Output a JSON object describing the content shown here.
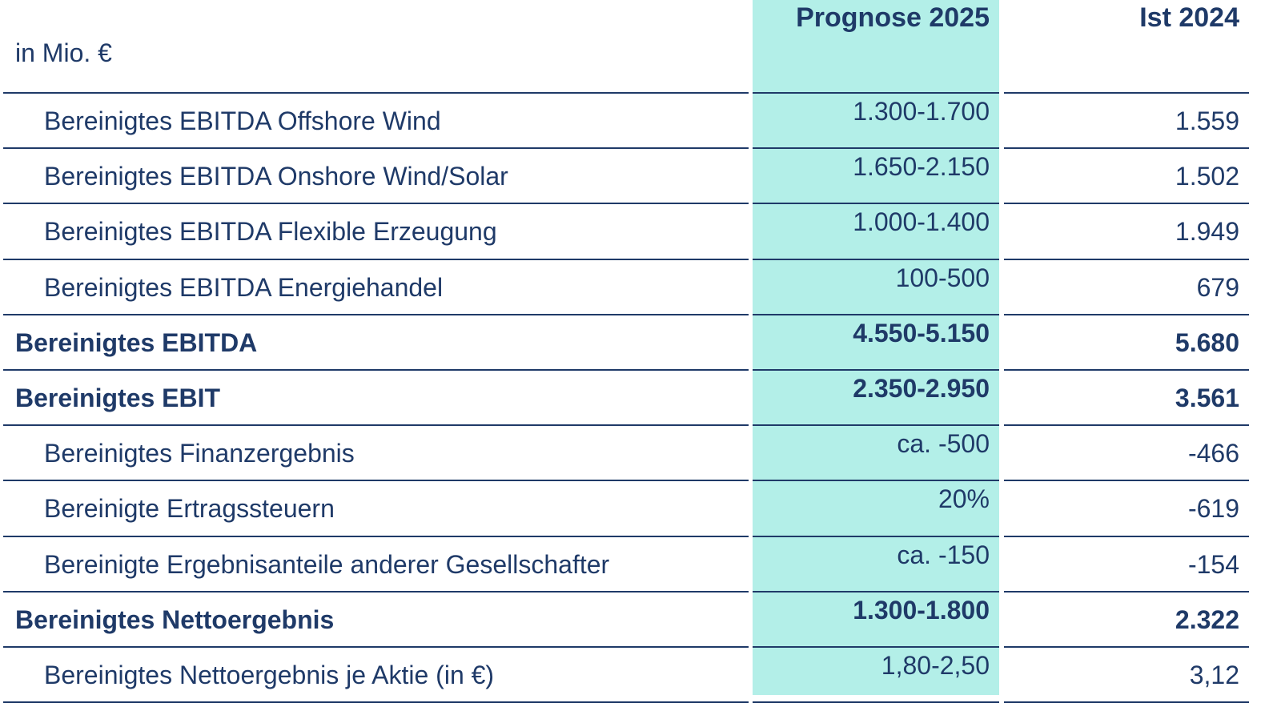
{
  "header": {
    "unit": "in Mio. €",
    "columns": [
      "Prognose 2025",
      "Ist 2024"
    ]
  },
  "table": {
    "rows": [
      {
        "label": "Bereinigtes EBITDA Offshore Wind",
        "forecast": "1.300-1.700",
        "actual": "1.559",
        "bold": false
      },
      {
        "label": "Bereinigtes EBITDA Onshore Wind/Solar",
        "forecast": "1.650-2.150",
        "actual": "1.502",
        "bold": false
      },
      {
        "label": "Bereinigtes EBITDA Flexible Erzeugung",
        "forecast": "1.000-1.400",
        "actual": "1.949",
        "bold": false
      },
      {
        "label": "Bereinigtes EBITDA Energiehandel",
        "forecast": "100-500",
        "actual": "679",
        "bold": false
      },
      {
        "label": "Bereinigtes EBITDA",
        "forecast": "4.550-5.150",
        "actual": "5.680",
        "bold": true
      },
      {
        "label": "Bereinigtes EBIT",
        "forecast": "2.350-2.950",
        "actual": "3.561",
        "bold": true
      },
      {
        "label": "Bereinigtes Finanzergebnis",
        "forecast": "ca. -500",
        "actual": "-466",
        "bold": false
      },
      {
        "label": "Bereinigte Ertragssteuern",
        "forecast": "20%",
        "actual": "-619",
        "bold": false
      },
      {
        "label": "Bereinigte Ergebnisanteile anderer Gesellschafter",
        "forecast": "ca. -150",
        "actual": "-154",
        "bold": false
      },
      {
        "label": "Bereinigtes Nettoergebnis",
        "forecast": "1.300-1.800",
        "actual": "2.322",
        "bold": true
      },
      {
        "label": "Bereinigtes Nettoergebnis je Aktie (in €)",
        "forecast": "1,80-2,50",
        "actual": "3,12",
        "bold": false
      }
    ]
  }
}
